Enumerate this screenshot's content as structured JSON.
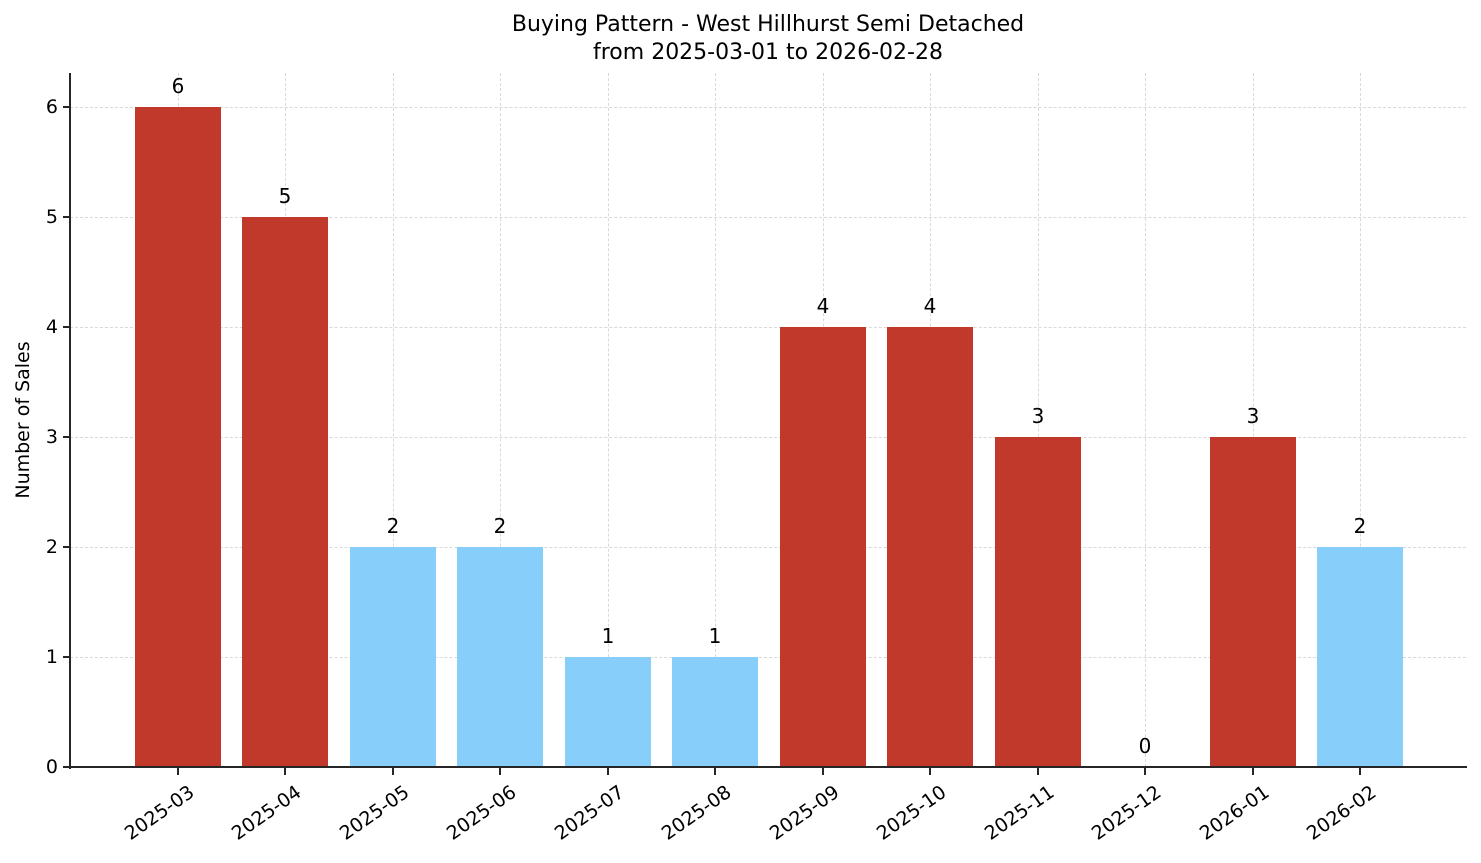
{
  "chart_data": {
    "type": "bar",
    "title": "Buying Pattern - West Hillhurst Semi Detached",
    "subtitle": "from 2025-03-01 to 2026-02-28",
    "xlabel": "",
    "ylabel": "Number of Sales",
    "categories": [
      "2025-03",
      "2025-04",
      "2025-05",
      "2025-06",
      "2025-07",
      "2025-08",
      "2025-09",
      "2025-10",
      "2025-11",
      "2025-12",
      "2026-01",
      "2026-02"
    ],
    "values": [
      6,
      5,
      2,
      2,
      1,
      1,
      4,
      4,
      3,
      0,
      3,
      2
    ],
    "bar_colors": [
      "#c0392b",
      "#c0392b",
      "#87cefa",
      "#87cefa",
      "#87cefa",
      "#87cefa",
      "#c0392b",
      "#c0392b",
      "#c0392b",
      "#c0392b",
      "#c0392b",
      "#87cefa"
    ],
    "data_labels": [
      "6",
      "5",
      "2",
      "2",
      "1",
      "1",
      "4",
      "4",
      "3",
      "0",
      "3",
      "2"
    ],
    "yticks": [
      0,
      1,
      2,
      3,
      4,
      5,
      6
    ],
    "ylim": [
      0,
      6.3
    ],
    "grid": true,
    "legend": null
  },
  "colors": {
    "high": "#c0392b",
    "low": "#87cefa",
    "axis": "#262626",
    "grid": "#d9d9d9"
  }
}
